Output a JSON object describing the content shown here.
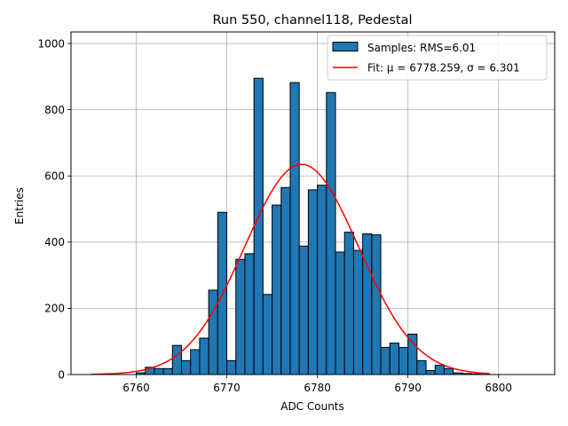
{
  "chart_data": {
    "type": "bar",
    "title": "Run 550, channel118, Pedestal",
    "xlabel": "ADC Counts",
    "ylabel": "Entries",
    "xlim": [
      6752.8,
      6806.2
    ],
    "ylim": [
      0,
      1035
    ],
    "xticks": [
      6760,
      6770,
      6780,
      6790,
      6800
    ],
    "yticks": [
      0,
      200,
      400,
      600,
      800,
      1000
    ],
    "grid": true,
    "legend_position": "top-right",
    "bin_width": 1,
    "bins": [
      [
        6760,
        5
      ],
      [
        6761,
        22
      ],
      [
        6762,
        18
      ],
      [
        6763,
        18
      ],
      [
        6764,
        88
      ],
      [
        6765,
        42
      ],
      [
        6766,
        75
      ],
      [
        6767,
        110
      ],
      [
        6768,
        255
      ],
      [
        6769,
        490
      ],
      [
        6770,
        42
      ],
      [
        6771,
        348
      ],
      [
        6772,
        365
      ],
      [
        6773,
        895
      ],
      [
        6774,
        242
      ],
      [
        6775,
        512
      ],
      [
        6776,
        565
      ],
      [
        6777,
        882
      ],
      [
        6778,
        388
      ],
      [
        6779,
        558
      ],
      [
        6780,
        572
      ],
      [
        6781,
        852
      ],
      [
        6782,
        370
      ],
      [
        6783,
        430
      ],
      [
        6784,
        375
      ],
      [
        6785,
        425
      ],
      [
        6786,
        422
      ],
      [
        6787,
        82
      ],
      [
        6788,
        95
      ],
      [
        6789,
        82
      ],
      [
        6790,
        122
      ],
      [
        6791,
        42
      ],
      [
        6792,
        12
      ],
      [
        6793,
        28
      ],
      [
        6794,
        18
      ],
      [
        6795,
        5
      ],
      [
        6796,
        3
      ],
      [
        6797,
        2
      ],
      [
        6798,
        1
      ]
    ],
    "fit": {
      "mu": 6778.259,
      "sigma": 6.301,
      "amplitude": 635,
      "x_range": [
        6755,
        6799
      ]
    },
    "colors": {
      "bars": "#1f77b4",
      "bar_edge": "#000000",
      "fit": "#ff0000",
      "grid": "#b0b0b0"
    },
    "legend": [
      {
        "label": "Samples: RMS=6.01",
        "kind": "patch"
      },
      {
        "label": "Fit: μ = 6778.259, σ = 6.301",
        "kind": "line"
      }
    ]
  }
}
